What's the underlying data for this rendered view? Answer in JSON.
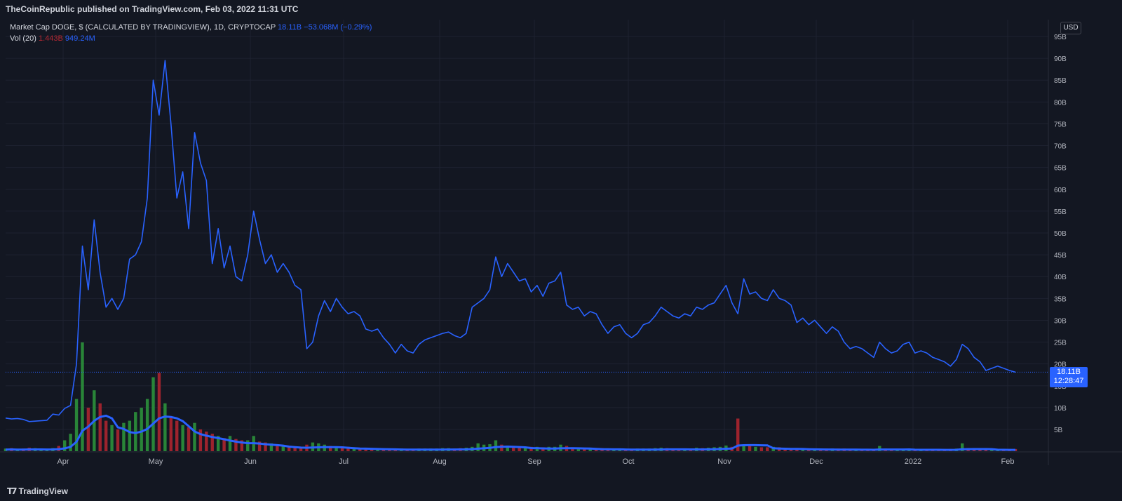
{
  "header": {
    "published": "TheCoinRepublic published on TradingView.com, Feb 03, 2022 11:31 UTC"
  },
  "legend": {
    "symbol": "Market Cap DOGE, $ (CALCULATED BY TRADINGVIEW), 1D, CRYPTOCAP",
    "last": "18.11B",
    "change": "−53.068M (−0.29%)",
    "vol_label": "Vol (20)",
    "vol_value": "1.443B",
    "vol_ma": "949.24M"
  },
  "currency": "USD",
  "price_label": {
    "value": "18.11B",
    "countdown": "12:28:47"
  },
  "footer": {
    "brand": "TradingView"
  },
  "colors": {
    "line": "#2962ff",
    "up": "#22ab94",
    "down": "#f23645",
    "background": "#131722",
    "grid": "#1e2230"
  },
  "chart_data": {
    "type": "line",
    "title": "Market Cap DOGE, $ (CALCULATED BY TRADINGVIEW), 1D, CRYPTOCAP",
    "x_ticks": [
      "Apr",
      "May",
      "Jun",
      "Jul",
      "Aug",
      "Sep",
      "Oct",
      "Nov",
      "Dec",
      "2022",
      "Feb"
    ],
    "y_ticks": [
      "5B",
      "10B",
      "15B",
      "20B",
      "25B",
      "30B",
      "35B",
      "40B",
      "45B",
      "50B",
      "55B",
      "60B",
      "65B",
      "70B",
      "75B",
      "80B",
      "85B",
      "90B",
      "95B"
    ],
    "ylim": [
      0,
      98
    ],
    "last_value": 18.11,
    "series": [
      {
        "values": [
          7.6,
          7.4,
          7.5,
          7.3,
          6.8,
          6.9,
          7.0,
          7.1,
          8.5,
          8.3,
          9.8,
          10.5,
          20.0,
          47.0,
          37.0,
          53.0,
          41.0,
          33.0,
          35.0,
          32.5,
          35.0,
          44.0,
          45.0,
          48.0,
          58.0,
          85.0,
          77.0,
          89.5,
          75.0,
          58.0,
          64.0,
          51.0,
          73.0,
          66.0,
          62.0,
          43.0,
          51.0,
          42.0,
          47.0,
          40.0,
          39.0,
          45.0,
          55.0,
          48.5,
          43.0,
          45.0,
          41.0,
          43.0,
          41.0,
          38.0,
          37.0,
          23.5,
          25.0,
          31.0,
          34.5,
          32.0,
          35.0,
          33.0,
          31.5,
          32.0,
          31.0,
          28.0,
          27.5,
          28.0,
          26.0,
          24.5,
          22.5,
          24.5,
          23.0,
          22.5,
          24.5,
          25.5,
          26.0,
          26.5,
          27.0,
          27.3,
          26.5,
          26.0,
          27.0,
          33.0,
          34.0,
          35.0,
          37.0,
          44.5,
          40.0,
          43.0,
          41.0,
          39.0,
          39.5,
          36.5,
          38.0,
          35.5,
          38.5,
          39.0,
          41.0,
          33.5,
          32.5,
          33.0,
          31.0,
          32.0,
          31.5,
          29.0,
          27.0,
          28.5,
          29.0,
          27.0,
          26.0,
          27.0,
          29.0,
          29.5,
          31.0,
          33.0,
          32.0,
          31.0,
          30.5,
          31.5,
          31.0,
          33.0,
          32.5,
          33.5,
          34.0,
          36.0,
          38.0,
          34.0,
          31.5,
          39.5,
          36.0,
          36.5,
          35.0,
          34.5,
          37.0,
          35.0,
          34.5,
          33.5,
          29.5,
          30.5,
          29.0,
          30.0,
          28.5,
          27.0,
          28.5,
          27.5,
          25.0,
          23.5,
          24.0,
          23.5,
          22.5,
          21.5,
          25.0,
          23.5,
          22.5,
          23.0,
          24.5,
          25.0,
          22.5,
          23.0,
          22.5,
          21.5,
          21.0,
          20.5,
          19.5,
          21.0,
          24.5,
          23.5,
          21.5,
          20.5,
          18.5,
          19.0,
          19.5,
          19.0,
          18.5,
          18.11
        ],
        "volume": [
          0.6,
          0.7,
          0.5,
          0.6,
          0.8,
          0.7,
          0.6,
          0.5,
          0.7,
          1.2,
          2.5,
          4.0,
          12.0,
          25.0,
          10.0,
          14.0,
          11.0,
          7.0,
          6.0,
          5.0,
          6.5,
          7.0,
          9.0,
          10.0,
          12.0,
          17.0,
          18.0,
          11.0,
          8.0,
          7.0,
          6.0,
          5.5,
          6.5,
          5.0,
          4.5,
          4.0,
          3.5,
          3.0,
          3.5,
          2.8,
          2.5,
          2.5,
          3.5,
          2.2,
          2.0,
          1.8,
          1.5,
          1.4,
          1.2,
          1.1,
          1.0,
          1.5,
          2.0,
          1.8,
          1.5,
          1.2,
          1.0,
          1.1,
          1.0,
          0.9,
          0.8,
          0.8,
          0.7,
          0.7,
          0.6,
          0.6,
          0.6,
          0.6,
          0.5,
          0.5,
          0.6,
          0.6,
          0.6,
          0.6,
          0.7,
          0.7,
          0.6,
          0.7,
          0.8,
          1.0,
          1.8,
          1.5,
          1.6,
          2.5,
          1.5,
          1.3,
          1.2,
          1.1,
          1.0,
          1.0,
          1.0,
          0.9,
          1.0,
          1.0,
          1.5,
          1.2,
          0.9,
          0.8,
          0.7,
          0.8,
          0.7,
          0.7,
          0.6,
          0.6,
          0.6,
          0.5,
          0.5,
          0.6,
          0.6,
          0.6,
          0.7,
          0.8,
          0.7,
          0.6,
          0.6,
          0.6,
          0.6,
          0.8,
          0.7,
          0.8,
          0.9,
          1.0,
          1.3,
          1.0,
          7.5,
          1.5,
          1.2,
          1.0,
          0.9,
          0.9,
          1.0,
          0.9,
          0.8,
          0.7,
          0.7,
          0.7,
          0.6,
          0.6,
          0.6,
          0.6,
          0.6,
          0.6,
          0.6,
          0.5,
          0.5,
          0.5,
          0.5,
          0.5,
          1.2,
          0.6,
          0.5,
          0.5,
          0.5,
          0.6,
          0.5,
          0.5,
          0.5,
          0.5,
          0.5,
          0.5,
          0.5,
          0.6,
          1.8,
          0.7,
          0.6,
          0.5,
          0.5,
          0.5,
          0.5,
          0.5,
          0.5,
          0.5
        ]
      }
    ],
    "volume_ma_label": "Vol (20)"
  }
}
